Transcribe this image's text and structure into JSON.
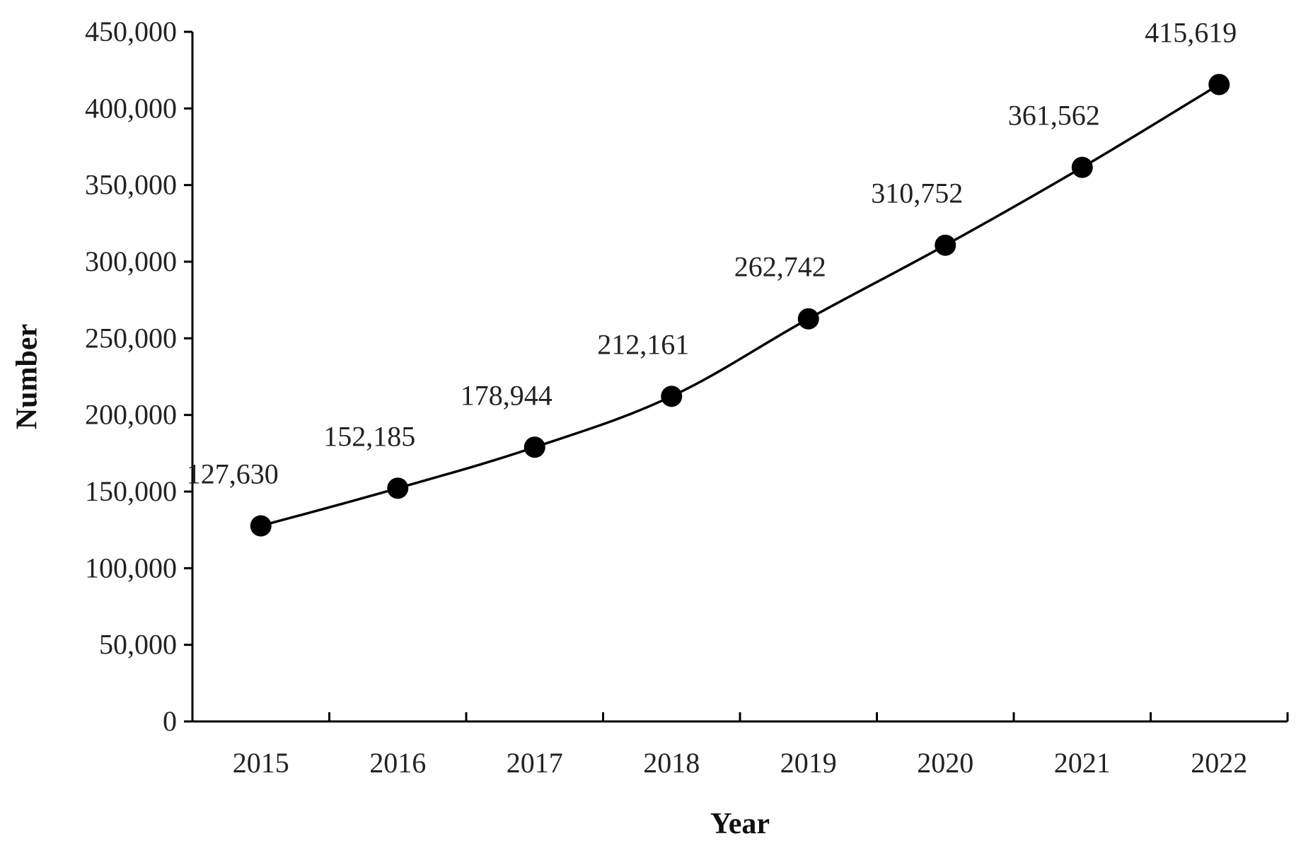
{
  "chart_data": {
    "type": "line",
    "title": "",
    "xlabel": "Year",
    "ylabel": "Number",
    "categories": [
      "2015",
      "2016",
      "2017",
      "2018",
      "2019",
      "2020",
      "2021",
      "2022"
    ],
    "series": [
      {
        "values": [
          127630,
          152185,
          178944,
          212161,
          262742,
          310752,
          361562,
          415619
        ],
        "labels": [
          "127,630",
          "152,185",
          "178,944",
          "212,161",
          "262,742",
          "310,752",
          "361,562",
          "415,619"
        ]
      }
    ],
    "ylim": [
      0,
      450000
    ],
    "yticks": [
      0,
      50000,
      100000,
      150000,
      200000,
      250000,
      300000,
      350000,
      400000,
      450000
    ],
    "ytick_labels": [
      "0",
      "50,000",
      "100,000",
      "150,000",
      "200,000",
      "250,000",
      "300,000",
      "350,000",
      "400,000",
      "450,000"
    ],
    "grid": false,
    "legend": "none",
    "line_color": "#000000",
    "marker_color": "#000000"
  }
}
